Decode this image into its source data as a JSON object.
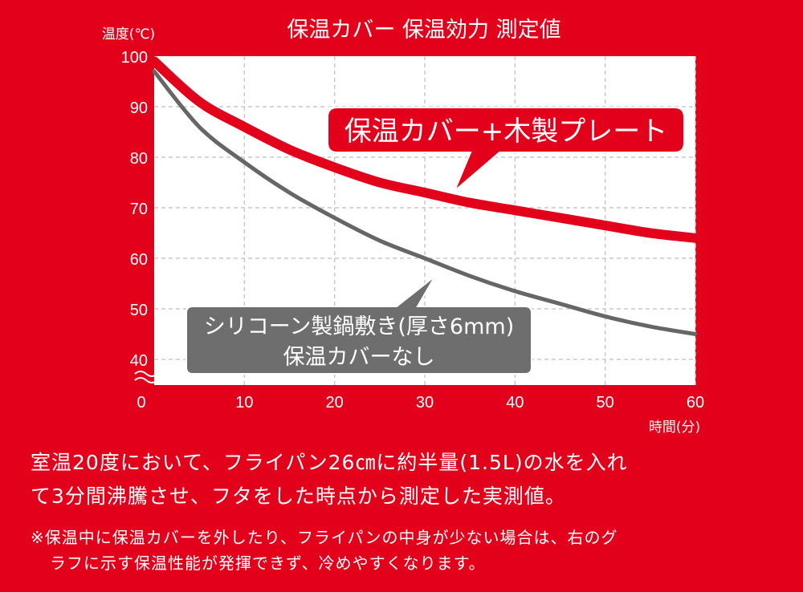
{
  "chart_data": {
    "type": "line",
    "title": "保温カバー 保温効力 測定値",
    "ylabel": "温度(℃)",
    "xlabel": "時間(分)",
    "x_ticks": [
      0,
      10,
      20,
      30,
      40,
      50,
      60
    ],
    "y_ticks": [
      40,
      50,
      60,
      70,
      80,
      90,
      100
    ],
    "xlim": [
      0,
      60
    ],
    "ylim": [
      40,
      100
    ],
    "grid": true,
    "series": [
      {
        "name": "保温カバー+木製プレート",
        "color": "#e3001b",
        "x": [
          0,
          5,
          10,
          15,
          20,
          25,
          30,
          35,
          40,
          45,
          50,
          55,
          60
        ],
        "y": [
          99,
          91,
          86,
          81.5,
          78,
          75,
          73,
          71,
          69.5,
          68,
          66.5,
          65,
          64
        ]
      },
      {
        "name": "シリコーン製鍋敷き(厚さ6mm)\n保温カバーなし",
        "color": "#666666",
        "x": [
          0,
          5,
          10,
          15,
          20,
          25,
          30,
          35,
          40,
          45,
          50,
          55,
          60
        ],
        "y": [
          97,
          86,
          79,
          73,
          68,
          63.5,
          60,
          56.5,
          53.5,
          51,
          48.5,
          46.5,
          45
        ]
      }
    ],
    "callouts": [
      {
        "lines": [
          "保温カバー+木製プレート"
        ],
        "fill": "#e3001b"
      },
      {
        "lines": [
          "シリコーン製鍋敷き(厚さ6mm)",
          "保温カバーなし"
        ],
        "fill": "#6e6e6e"
      }
    ]
  },
  "notes": {
    "main_line1": "室温20度において、フライパン26㎝に約半量(1.5L)の水を入れ",
    "main_line2": "て3分間沸騰させ、フタをした時点から測定した実測値。",
    "small_line1": "※保温中に保温カバーを外したり、フライパンの中身が少ない場合は、右のグ",
    "small_line2": "ラフに示す保温性能が発揮できず、冷めやすくなります。"
  }
}
